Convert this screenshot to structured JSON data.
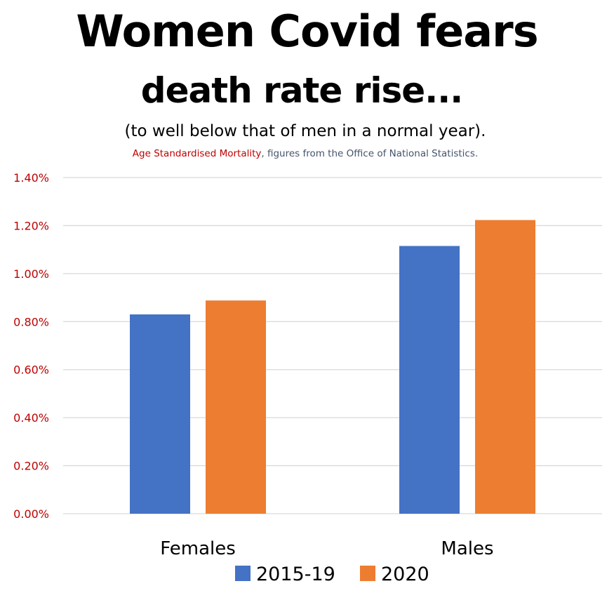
{
  "header": {
    "title_line1": "Women Covid fears",
    "title_line2": "death rate rise...",
    "subtitle": "(to well below that of men in a normal year).",
    "source_highlight": "Age Standardised Mortality",
    "source_rest": ", figures from the Office of National Statistics."
  },
  "chart_data": {
    "type": "bar",
    "title": "Women Covid fears death rate rise...",
    "subtitle": "(to well below that of men in a normal year).",
    "categories": [
      "Females",
      "Males"
    ],
    "series": [
      {
        "name": "2015-19",
        "values": [
          0.83,
          1.115
        ],
        "color": "#4472c4"
      },
      {
        "name": "2020",
        "values": [
          0.888,
          1.223
        ],
        "color": "#ed7d31"
      }
    ],
    "unit": "%",
    "ylim": [
      0,
      1.4
    ],
    "ytick_step": 0.2,
    "ytick_labels": [
      "0.00%",
      "0.20%",
      "0.40%",
      "0.60%",
      "0.80%",
      "1.00%",
      "1.20%",
      "1.40%"
    ],
    "grid": true,
    "legend_position": "bottom",
    "tick_label_color": "#c00000"
  }
}
